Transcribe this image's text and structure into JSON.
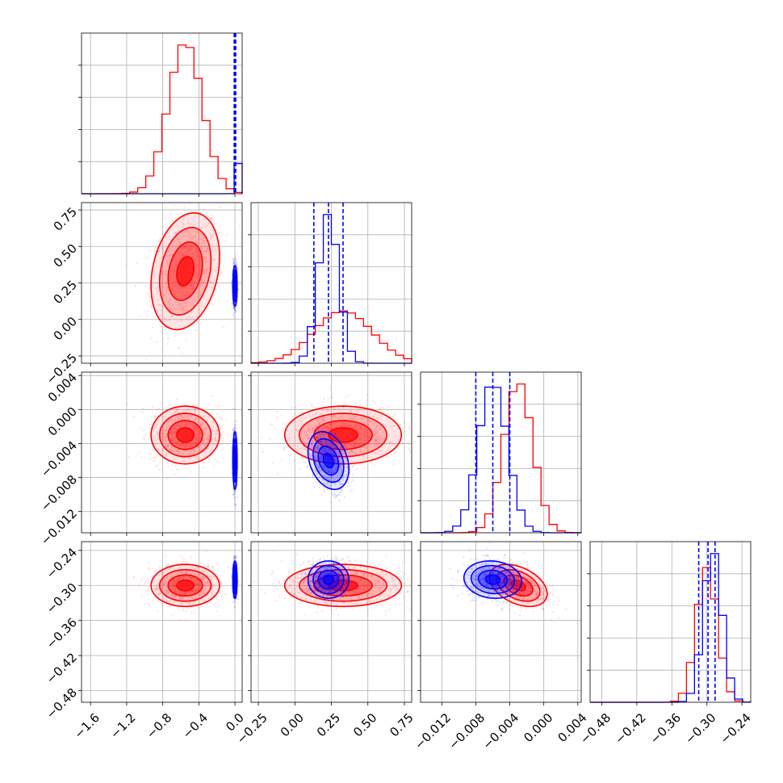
{
  "colors": {
    "red": "#ff0000",
    "blue": "#0000ff",
    "grid": "#b0b0b0",
    "axis": "#000000"
  },
  "chart_data": {
    "type": "corner",
    "grid": true,
    "parameters": [
      {
        "id": "p0",
        "lim": [
          -1.7,
          0.08
        ],
        "ticks": [
          -1.6,
          -1.2,
          -0.8,
          -0.4,
          0.0
        ],
        "tick_labels": [
          "−1.6",
          "−1.2",
          "−0.8",
          "−0.4",
          "0.0"
        ]
      },
      {
        "id": "p1",
        "lim": [
          -0.3,
          0.8
        ],
        "ticks": [
          -0.25,
          0.0,
          0.25,
          0.5,
          0.75
        ],
        "tick_labels": [
          "−0.25",
          "0.00",
          "0.25",
          "0.50",
          "0.75"
        ]
      },
      {
        "id": "p2",
        "lim": [
          -0.0145,
          0.0044
        ],
        "ticks": [
          -0.012,
          -0.008,
          -0.004,
          0.0,
          0.004
        ],
        "tick_labels": [
          "−0.012",
          "−0.008",
          "−0.004",
          "0.000",
          "0.004"
        ]
      },
      {
        "id": "p3",
        "lim": [
          -0.5,
          -0.225
        ],
        "ticks": [
          -0.48,
          -0.42,
          -0.36,
          -0.3,
          -0.24
        ],
        "tick_labels": [
          "−0.48",
          "−0.42",
          "−0.36",
          "−0.30",
          "−0.24"
        ]
      }
    ],
    "series": [
      {
        "color": "red",
        "mean": [
          -0.55,
          0.33,
          -0.003,
          -0.3
        ],
        "sd": [
          0.19,
          0.2,
          0.0017,
          0.018
        ],
        "correlation": [
          [
            1,
            0.25,
            0,
            0
          ],
          [
            0.25,
            1,
            0,
            0
          ],
          [
            0,
            0,
            1,
            -0.4
          ],
          [
            0,
            0,
            -0.4,
            1
          ]
        ],
        "quantiles": []
      },
      {
        "color": "blue",
        "mean": [
          0.0,
          0.23,
          -0.006,
          -0.29
        ],
        "sd": [
          0.012,
          0.07,
          0.0017,
          0.016
        ],
        "correlation": [
          [
            1,
            0,
            0,
            0
          ],
          [
            0,
            1,
            -0.3,
            0
          ],
          [
            0,
            -0.3,
            1,
            -0.1
          ],
          [
            0,
            0,
            -0.1,
            1
          ]
        ],
        "quantiles": [
          [
            -0.008,
            0.0,
            0.008
          ],
          [
            0.13,
            0.23,
            0.33
          ],
          [
            -0.008,
            -0.006,
            -0.004
          ],
          [
            -0.314,
            -0.298,
            -0.286
          ]
        ]
      }
    ]
  }
}
